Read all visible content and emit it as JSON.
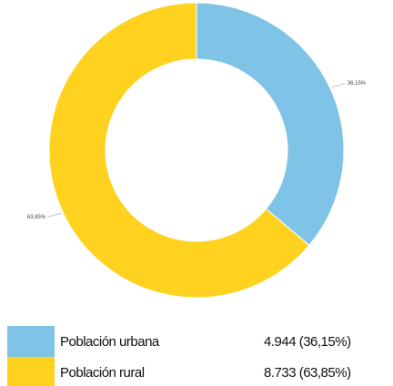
{
  "chart_data": {
    "type": "pie",
    "donut": true,
    "categories": [
      "Población urbana",
      "Población rural"
    ],
    "values": [
      36.15,
      63.85
    ],
    "value_labels": [
      "36,15%",
      "63,85%"
    ],
    "legend_labels": [
      "4.944 (36,15%)",
      "8.733 (63,85%)"
    ],
    "colors": [
      "#7fc4e6",
      "#ffd21f"
    ]
  }
}
